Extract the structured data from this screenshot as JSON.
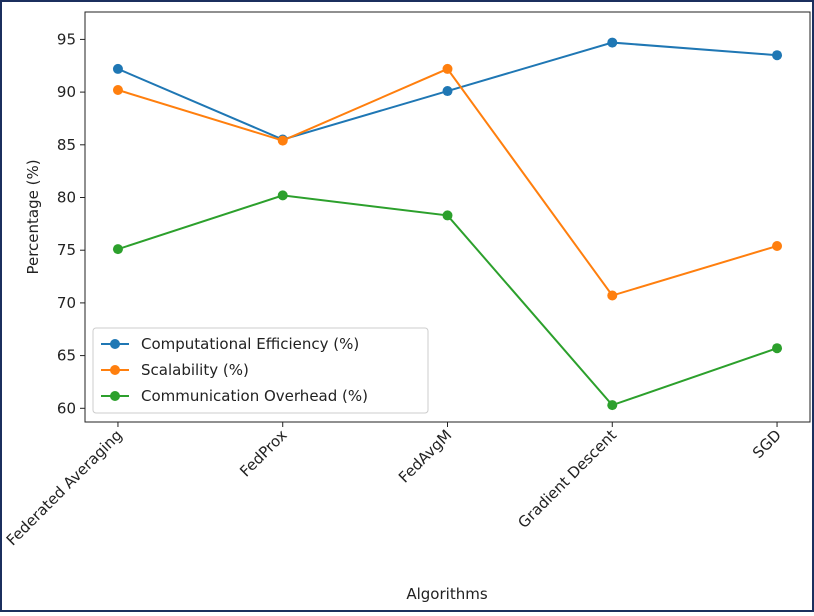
{
  "chart_data": {
    "type": "line",
    "x_label": "Algorithms",
    "y_label": "Percentage (%)",
    "categories": [
      "Federated Averaging",
      "FedProx",
      "FedAvgM",
      "Gradient Descent",
      "SGD"
    ],
    "series": [
      {
        "name": "Computational Efficiency (%)",
        "color": "#1f77b4",
        "values": [
          92.2,
          85.5,
          90.1,
          94.7,
          93.5
        ]
      },
      {
        "name": "Scalability (%)",
        "color": "#ff7f0e",
        "values": [
          90.2,
          85.4,
          92.2,
          70.7,
          75.4
        ]
      },
      {
        "name": "Communication Overhead (%)",
        "color": "#2ca02c",
        "values": [
          75.1,
          80.2,
          78.3,
          60.3,
          65.7
        ]
      }
    ],
    "ylim": [
      58.7,
      97.6
    ],
    "yticks": [
      60,
      65,
      70,
      75,
      80,
      85,
      90,
      95
    ],
    "legend": "lower left"
  }
}
